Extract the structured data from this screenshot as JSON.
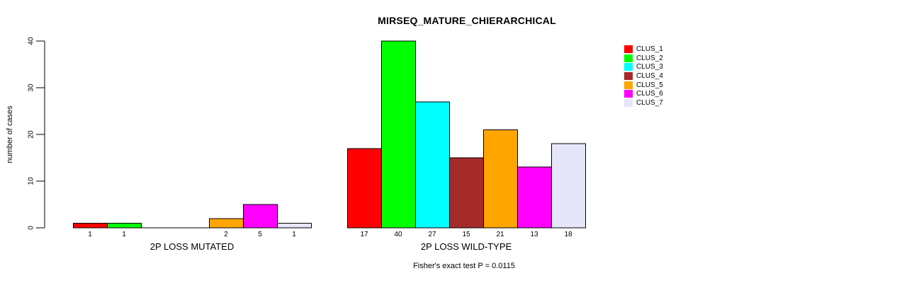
{
  "chart_data": {
    "type": "bar",
    "title": "MIRSEQ_MATURE_CHIERARCHICAL",
    "ylabel": "number of cases",
    "xlabel": "",
    "ylim": [
      0,
      40
    ],
    "yticks": [
      0,
      10,
      20,
      30,
      40
    ],
    "grid": false,
    "legend_position": "right",
    "series_names": [
      "CLUS_1",
      "CLUS_2",
      "CLUS_3",
      "CLUS_4",
      "CLUS_5",
      "CLUS_6",
      "CLUS_7"
    ],
    "colors": [
      "#FF0000",
      "#00FF00",
      "#00FFFF",
      "#A52A2A",
      "#FFA500",
      "#FF00FF",
      "#E6E6FA"
    ],
    "groups": [
      {
        "label": "2P LOSS MUTATED",
        "values": [
          1,
          1,
          0,
          0,
          2,
          5,
          1
        ],
        "bar_labels": [
          "1",
          "1",
          "",
          "",
          "2",
          "5",
          "1"
        ]
      },
      {
        "label": "2P LOSS WILD-TYPE",
        "values": [
          17,
          40,
          27,
          15,
          21,
          13,
          18
        ],
        "bar_labels": [
          "17",
          "40",
          "27",
          "15",
          "21",
          "13",
          "18"
        ]
      }
    ],
    "annotation": "Fisher's exact test P = 0.0115"
  }
}
